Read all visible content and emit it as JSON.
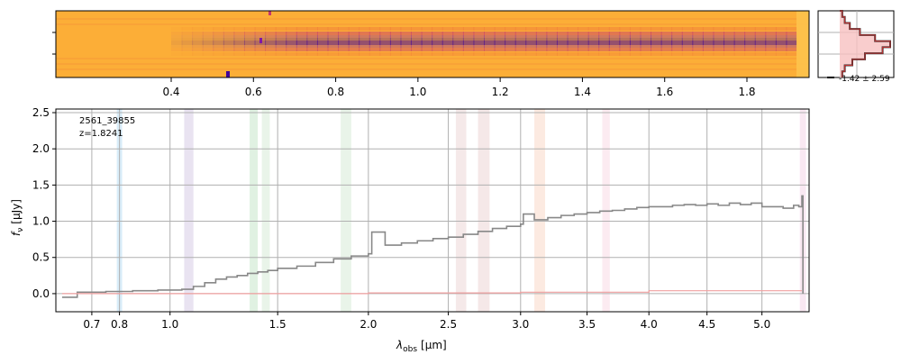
{
  "spectrum_2d": {
    "tick_labels": [
      "0.4",
      "0.6",
      "0.8",
      "1.0",
      "1.2",
      "1.4",
      "1.6",
      "1.8"
    ],
    "tick_values": [
      0.4,
      0.6,
      0.8,
      1.0,
      1.2,
      1.4,
      1.6,
      1.8
    ],
    "colormap": [
      "#fcae37",
      "#f07a39",
      "#c4356e",
      "#7f17a8",
      "#3f049a"
    ]
  },
  "histogram": {
    "label": "-1.42 ± 2.59",
    "fill_color": "#f7c1c1",
    "line_color": "#c23030"
  },
  "chart_data": {
    "type": "line",
    "annotation": {
      "id": "2561_39855",
      "redshift": "z=1.8241"
    },
    "xlabel_main": "λ",
    "xlabel_sub": "obs",
    "xlabel_unit": "[μm]",
    "ylabel_main": "f",
    "ylabel_sub": "ν",
    "ylabel_unit": "[μJy]",
    "ylim": [
      -0.25,
      2.55
    ],
    "xlim": [
      0.58,
      5.45
    ],
    "x_scale": "sqrt-like",
    "grid": true,
    "y_ticks": [
      0.0,
      0.5,
      1.0,
      1.5,
      2.0,
      2.5
    ],
    "y_tick_labels": [
      "0.0",
      "0.5",
      "1.0",
      "1.5",
      "2.0",
      "2.5"
    ],
    "x_ticks": [
      0.7,
      0.8,
      1.0,
      1.5,
      2.0,
      2.5,
      3.0,
      3.5,
      4.0,
      4.5,
      5.0
    ],
    "x_tick_labels": [
      "0.7",
      "0.8",
      "1.0",
      "1.5",
      "2.0",
      "2.5",
      "3.0",
      "3.5",
      "4.0",
      "4.5",
      "5.0"
    ],
    "line_bands": [
      {
        "x0": 0.79,
        "x1": 0.81,
        "color": "#cfe9f7"
      },
      {
        "x0": 1.06,
        "x1": 1.1,
        "color": "#e4dcee"
      },
      {
        "x0": 1.36,
        "x1": 1.4,
        "color": "#d8eedb"
      },
      {
        "x0": 1.42,
        "x1": 1.46,
        "color": "#e3f1e3"
      },
      {
        "x0": 1.84,
        "x1": 1.9,
        "color": "#e3f1e3"
      },
      {
        "x0": 2.55,
        "x1": 2.62,
        "color": "#f2e4e4"
      },
      {
        "x0": 2.7,
        "x1": 2.78,
        "color": "#f3e2e2"
      },
      {
        "x0": 3.1,
        "x1": 3.18,
        "color": "#fbe5da"
      },
      {
        "x0": 3.62,
        "x1": 3.68,
        "color": "#fbe6ee"
      },
      {
        "x0": 5.36,
        "x1": 5.42,
        "color": "#f7e2ef"
      }
    ],
    "series": [
      {
        "color": "#888888",
        "x": [
          0.6,
          0.65,
          0.7,
          0.75,
          0.8,
          0.85,
          0.9,
          0.95,
          1.0,
          1.05,
          1.1,
          1.15,
          1.2,
          1.25,
          1.3,
          1.35,
          1.4,
          1.45,
          1.5,
          1.6,
          1.7,
          1.8,
          1.9,
          2.0,
          2.02,
          2.1,
          2.2,
          2.3,
          2.4,
          2.5,
          2.6,
          2.7,
          2.8,
          2.9,
          3.0,
          3.02,
          3.1,
          3.2,
          3.3,
          3.4,
          3.5,
          3.6,
          3.7,
          3.8,
          3.9,
          4.0,
          4.1,
          4.2,
          4.3,
          4.4,
          4.5,
          4.6,
          4.7,
          4.8,
          4.9,
          5.0,
          5.1,
          5.2,
          5.3,
          5.35,
          5.38,
          5.39
        ],
        "y": [
          -0.05,
          0.02,
          0.02,
          0.03,
          0.03,
          0.04,
          0.04,
          0.05,
          0.05,
          0.06,
          0.1,
          0.15,
          0.2,
          0.23,
          0.25,
          0.28,
          0.3,
          0.32,
          0.35,
          0.38,
          0.43,
          0.48,
          0.52,
          0.55,
          0.85,
          0.67,
          0.7,
          0.73,
          0.76,
          0.78,
          0.82,
          0.86,
          0.9,
          0.93,
          0.96,
          1.1,
          1.02,
          1.05,
          1.08,
          1.1,
          1.12,
          1.14,
          1.15,
          1.17,
          1.19,
          1.2,
          1.2,
          1.22,
          1.23,
          1.22,
          1.24,
          1.22,
          1.25,
          1.23,
          1.25,
          1.2,
          1.2,
          1.18,
          1.22,
          1.2,
          1.35,
          0.0
        ]
      },
      {
        "color": "#f0a0a0",
        "x": [
          0.6,
          1.0,
          2.0,
          3.0,
          4.0,
          5.0,
          5.38
        ],
        "y": [
          0.0,
          0.0,
          0.01,
          0.02,
          0.04,
          0.04,
          0.04
        ]
      }
    ]
  }
}
